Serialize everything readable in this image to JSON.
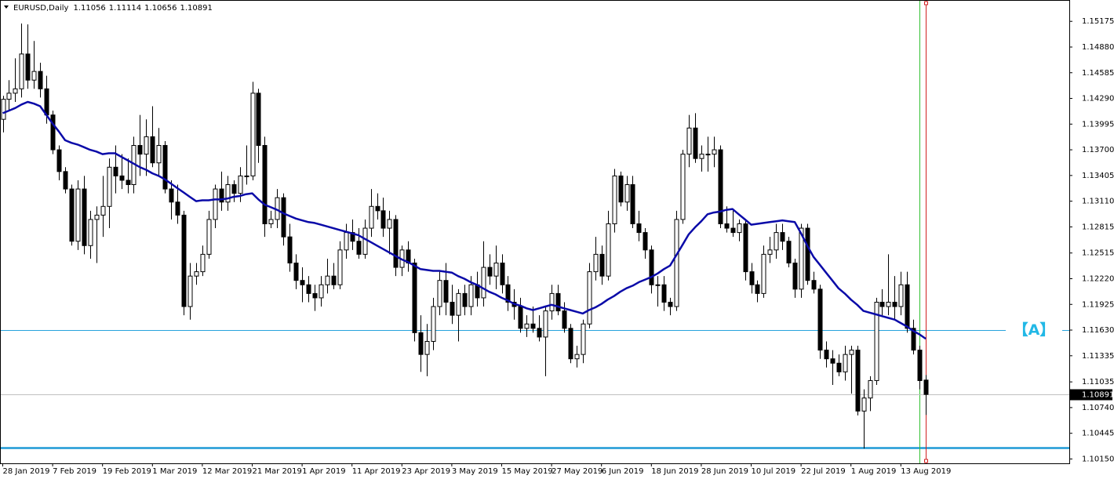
{
  "chart_data": {
    "type": "candlestick",
    "title": "EURUSD,Daily",
    "categories": [
      "28 Jan 2019",
      null,
      null,
      null,
      null,
      null,
      null,
      null,
      "7 Feb 2019",
      null,
      null,
      null,
      null,
      null,
      null,
      null,
      "19 Feb 2019",
      null,
      null,
      null,
      null,
      null,
      null,
      null,
      "1 Mar 2019",
      null,
      null,
      null,
      null,
      null,
      null,
      null,
      "12 Mar 2019",
      null,
      null,
      null,
      null,
      null,
      null,
      null,
      "21 Mar 2019",
      null,
      null,
      null,
      null,
      null,
      null,
      null,
      "1 Apr 2019",
      null,
      null,
      null,
      null,
      null,
      null,
      null,
      "11 Apr 2019",
      null,
      null,
      null,
      null,
      null,
      null,
      null,
      "23 Apr 2019",
      null,
      null,
      null,
      null,
      null,
      null,
      null,
      "3 May 2019",
      null,
      null,
      null,
      null,
      null,
      null,
      null,
      "15 May 2019",
      null,
      null,
      null,
      null,
      null,
      null,
      null,
      "27 May 2019",
      null,
      null,
      null,
      null,
      null,
      null,
      null,
      "6 Jun 2019",
      null,
      null,
      null,
      null,
      null,
      null,
      null,
      "18 Jun 2019",
      null,
      null,
      null,
      null,
      null,
      null,
      null,
      "28 Jun 2019",
      null,
      null,
      null,
      null,
      null,
      null,
      null,
      "10 Jul 2019",
      null,
      null,
      null,
      null,
      null,
      null,
      null,
      "22 Jul 2019",
      null,
      null,
      null,
      null,
      null,
      null,
      null,
      "1 Aug 2019",
      null,
      null,
      null,
      null,
      null,
      null,
      null,
      "13 Aug 2019",
      null,
      null,
      null,
      null
    ],
    "open": [
      1.1405,
      1.1428,
      1.1435,
      1.144,
      1.148,
      1.145,
      1.146,
      1.144,
      1.141,
      1.137,
      1.1345,
      1.1325,
      1.1265,
      1.1325,
      1.126,
      1.129,
      1.1295,
      1.1305,
      1.135,
      1.134,
      1.1335,
      1.133,
      1.1375,
      1.1365,
      1.1385,
      1.1355,
      1.1375,
      1.1325,
      1.131,
      1.1295,
      1.119,
      1.1225,
      1.123,
      1.125,
      1.129,
      1.1325,
      1.131,
      1.133,
      1.132,
      1.134,
      1.134,
      1.1435,
      1.1375,
      1.1285,
      1.129,
      1.1315,
      1.127,
      1.124,
      1.122,
      1.1215,
      1.1205,
      1.12,
      1.1215,
      1.1225,
      1.1215,
      1.1255,
      1.1275,
      1.1265,
      1.125,
      1.128,
      1.1305,
      1.13,
      1.128,
      1.129,
      1.1235,
      1.1255,
      1.124,
      1.116,
      1.1135,
      1.115,
      1.119,
      1.122,
      1.1195,
      1.118,
      1.1205,
      1.119,
      1.1215,
      1.12,
      1.1235,
      1.1225,
      1.124,
      1.1215,
      1.1195,
      1.119,
      1.1165,
      1.117,
      1.1165,
      1.1155,
      1.1185,
      1.1205,
      1.1185,
      1.1165,
      1.113,
      1.1135,
      1.117,
      1.123,
      1.125,
      1.1225,
      1.1285,
      1.134,
      1.131,
      1.133,
      1.1285,
      1.1275,
      1.1255,
      1.1215,
      1.1215,
      1.1195,
      1.119,
      1.129,
      1.1365,
      1.1395,
      1.136,
      1.1365,
      1.1365,
      1.137,
      1.1285,
      1.128,
      1.1275,
      1.1285,
      1.123,
      1.1215,
      1.1205,
      1.125,
      1.1255,
      1.1275,
      1.1265,
      1.124,
      1.121,
      1.128,
      1.122,
      1.121,
      1.114,
      1.113,
      1.1125,
      1.1115,
      1.1135,
      1.114,
      1.107,
      1.1085,
      1.1105,
      1.1195,
      1.119,
      1.1195,
      1.119,
      1.1215,
      1.1165,
      1.114,
      1.11056
    ],
    "high": [
      1.1432,
      1.145,
      1.1475,
      1.1515,
      1.1514,
      1.1495,
      1.147,
      1.1455,
      1.1415,
      1.1375,
      1.135,
      1.133,
      1.1335,
      1.134,
      1.13,
      1.1305,
      1.134,
      1.136,
      1.1375,
      1.1365,
      1.136,
      1.1385,
      1.141,
      1.1405,
      1.142,
      1.1395,
      1.138,
      1.1335,
      1.133,
      1.13,
      1.124,
      1.124,
      1.126,
      1.13,
      1.133,
      1.1345,
      1.134,
      1.1335,
      1.135,
      1.1375,
      1.1448,
      1.144,
      1.1385,
      1.13,
      1.1325,
      1.132,
      1.1285,
      1.125,
      1.1235,
      1.1225,
      1.1215,
      1.1225,
      1.1245,
      1.124,
      1.1265,
      1.1285,
      1.129,
      1.128,
      1.129,
      1.1325,
      1.132,
      1.1315,
      1.13,
      1.1295,
      1.126,
      1.1265,
      1.1245,
      1.118,
      1.117,
      1.12,
      1.123,
      1.124,
      1.1215,
      1.121,
      1.1215,
      1.1225,
      1.123,
      1.1265,
      1.125,
      1.126,
      1.125,
      1.1225,
      1.121,
      1.12,
      1.118,
      1.119,
      1.118,
      1.119,
      1.1215,
      1.1215,
      1.1195,
      1.117,
      1.1145,
      1.1175,
      1.124,
      1.127,
      1.126,
      1.13,
      1.1348,
      1.1345,
      1.134,
      1.134,
      1.13,
      1.128,
      1.126,
      1.1225,
      1.1225,
      1.12,
      1.13,
      1.137,
      1.141,
      1.1412,
      1.1375,
      1.1385,
      1.1385,
      1.1375,
      1.1305,
      1.13,
      1.129,
      1.129,
      1.124,
      1.122,
      1.126,
      1.127,
      1.1285,
      1.1285,
      1.127,
      1.1245,
      1.1285,
      1.1285,
      1.123,
      1.1215,
      1.115,
      1.114,
      1.1135,
      1.1145,
      1.1145,
      1.1145,
      1.1095,
      1.111,
      1.12,
      1.121,
      1.125,
      1.1225,
      1.123,
      1.123,
      1.1175,
      1.1145,
      1.11114
    ],
    "low": [
      1.139,
      1.1415,
      1.1425,
      1.143,
      1.144,
      1.144,
      1.143,
      1.14,
      1.1365,
      1.1335,
      1.132,
      1.126,
      1.1255,
      1.125,
      1.1245,
      1.124,
      1.127,
      1.128,
      1.132,
      1.1325,
      1.132,
      1.132,
      1.134,
      1.134,
      1.135,
      1.134,
      1.132,
      1.129,
      1.1285,
      1.118,
      1.1175,
      1.1215,
      1.1225,
      1.1245,
      1.128,
      1.13,
      1.13,
      1.131,
      1.131,
      1.133,
      1.1335,
      1.1355,
      1.127,
      1.128,
      1.128,
      1.126,
      1.123,
      1.121,
      1.1195,
      1.1195,
      1.1185,
      1.119,
      1.1205,
      1.121,
      1.121,
      1.1245,
      1.1255,
      1.1245,
      1.1245,
      1.127,
      1.129,
      1.127,
      1.125,
      1.1225,
      1.1225,
      1.123,
      1.115,
      1.1115,
      1.111,
      1.114,
      1.118,
      1.118,
      1.117,
      1.115,
      1.118,
      1.118,
      1.119,
      1.119,
      1.1215,
      1.121,
      1.1205,
      1.1185,
      1.1175,
      1.116,
      1.1155,
      1.116,
      1.115,
      1.111,
      1.1175,
      1.118,
      1.116,
      1.1125,
      1.112,
      1.1125,
      1.1165,
      1.122,
      1.1215,
      1.122,
      1.1275,
      1.1305,
      1.13,
      1.128,
      1.1265,
      1.1245,
      1.1205,
      1.119,
      1.1185,
      1.118,
      1.1185,
      1.1285,
      1.135,
      1.1355,
      1.1345,
      1.1345,
      1.135,
      1.128,
      1.1275,
      1.127,
      1.1265,
      1.122,
      1.1205,
      1.1195,
      1.12,
      1.124,
      1.1245,
      1.1255,
      1.1235,
      1.12,
      1.12,
      1.1215,
      1.1205,
      1.113,
      1.112,
      1.11,
      1.111,
      1.1105,
      1.109,
      1.1065,
      1.1027,
      1.107,
      1.11,
      1.118,
      1.118,
      1.1175,
      1.118,
      1.116,
      1.1135,
      1.1095,
      1.10656
    ],
    "close": [
      1.1428,
      1.1435,
      1.144,
      1.148,
      1.145,
      1.146,
      1.144,
      1.141,
      1.137,
      1.1345,
      1.1325,
      1.1265,
      1.1325,
      1.126,
      1.129,
      1.1295,
      1.1305,
      1.135,
      1.134,
      1.1335,
      1.133,
      1.1375,
      1.1365,
      1.1385,
      1.1355,
      1.1375,
      1.1325,
      1.131,
      1.1295,
      1.119,
      1.1225,
      1.123,
      1.125,
      1.129,
      1.1325,
      1.131,
      1.133,
      1.132,
      1.134,
      1.134,
      1.1435,
      1.1375,
      1.1285,
      1.129,
      1.1315,
      1.127,
      1.124,
      1.122,
      1.1215,
      1.1205,
      1.12,
      1.1215,
      1.1225,
      1.1215,
      1.1255,
      1.1275,
      1.1265,
      1.125,
      1.128,
      1.1305,
      1.13,
      1.128,
      1.129,
      1.1235,
      1.1255,
      1.124,
      1.116,
      1.1135,
      1.115,
      1.119,
      1.122,
      1.1195,
      1.118,
      1.1205,
      1.119,
      1.1215,
      1.12,
      1.1235,
      1.1225,
      1.124,
      1.1215,
      1.1195,
      1.119,
      1.1165,
      1.117,
      1.1165,
      1.1155,
      1.1185,
      1.1205,
      1.1185,
      1.1165,
      1.113,
      1.1135,
      1.117,
      1.123,
      1.125,
      1.1225,
      1.1285,
      1.134,
      1.131,
      1.133,
      1.1285,
      1.1275,
      1.1255,
      1.1215,
      1.1215,
      1.1195,
      1.119,
      1.129,
      1.1365,
      1.1395,
      1.136,
      1.1365,
      1.1365,
      1.137,
      1.1285,
      1.128,
      1.1275,
      1.1285,
      1.123,
      1.1215,
      1.1205,
      1.125,
      1.1255,
      1.1275,
      1.1265,
      1.124,
      1.121,
      1.128,
      1.122,
      1.121,
      1.114,
      1.113,
      1.1125,
      1.1115,
      1.1135,
      1.114,
      1.107,
      1.1085,
      1.1105,
      1.1195,
      1.119,
      1.1195,
      1.119,
      1.1215,
      1.1165,
      1.114,
      1.1105,
      1.10891
    ],
    "ma": {
      "color": "#0a0aa8",
      "values": [
        1.1412,
        1.1415,
        1.1418,
        1.1422,
        1.1425,
        1.1423,
        1.142,
        1.141,
        1.14,
        1.1391,
        1.1381,
        1.1378,
        1.1376,
        1.1373,
        1.137,
        1.1368,
        1.1365,
        1.1366,
        1.1366,
        1.1362,
        1.1358,
        1.1354,
        1.135,
        1.1347,
        1.1343,
        1.134,
        1.1336,
        1.1331,
        1.1326,
        1.1321,
        1.1316,
        1.1311,
        1.1312,
        1.1312,
        1.1313,
        1.1313,
        1.1314,
        1.1316,
        1.1317,
        1.1319,
        1.132,
        1.1313,
        1.1307,
        1.1304,
        1.1301,
        1.1297,
        1.1294,
        1.1291,
        1.1289,
        1.1287,
        1.1286,
        1.1284,
        1.1282,
        1.128,
        1.1278,
        1.1276,
        1.1274,
        1.1272,
        1.1268,
        1.1264,
        1.126,
        1.1256,
        1.1252,
        1.1248,
        1.1244,
        1.1241,
        1.1237,
        1.1233,
        1.1232,
        1.1231,
        1.1231,
        1.123,
        1.1229,
        1.1225,
        1.1222,
        1.1218,
        1.1215,
        1.1211,
        1.1207,
        1.1204,
        1.12,
        1.1197,
        1.1193,
        1.1191,
        1.1188,
        1.1186,
        1.1188,
        1.119,
        1.1192,
        1.119,
        1.1188,
        1.1186,
        1.1184,
        1.1182,
        1.1186,
        1.1189,
        1.1193,
        1.1198,
        1.1202,
        1.1207,
        1.1211,
        1.1214,
        1.1218,
        1.1221,
        1.1224,
        1.1228,
        1.1233,
        1.1237,
        1.1249,
        1.1261,
        1.1273,
        1.1281,
        1.1288,
        1.1296,
        1.1298,
        1.1299,
        1.1301,
        1.1302,
        1.1296,
        1.129,
        1.1284,
        1.1285,
        1.1286,
        1.1287,
        1.1288,
        1.1289,
        1.1288,
        1.1287,
        1.1274,
        1.126,
        1.1247,
        1.1238,
        1.1229,
        1.122,
        1.1211,
        1.1205,
        1.1198,
        1.1192,
        1.1185,
        1.1183,
        1.1181,
        1.1179,
        1.1177,
        1.1175,
        1.1171,
        1.1167,
        1.1162,
        1.1158,
        1.1153
      ]
    },
    "ylim": [
      1.101,
      1.1542
    ],
    "yticks": [
      1.15175,
      {
        "value": 1.1488,
        "label": "1.14880"
      },
      1.14585,
      {
        "value": 1.1429,
        "label": "1.14290"
      },
      1.13995,
      {
        "value": 1.137,
        "label": "1.13700"
      },
      1.13405,
      {
        "value": 1.1311,
        "label": "1.13110"
      },
      1.12815,
      1.12515,
      {
        "value": 1.1222,
        "label": "1.12220"
      },
      1.11925,
      {
        "value": 1.1163,
        "label": "1.11630"
      },
      1.11335,
      1.11035,
      {
        "value": 1.1074,
        "label": "1.10740"
      },
      1.10445,
      {
        "value": 1.1015,
        "label": "1.10150"
      }
    ],
    "hlines": [
      {
        "value": 1.1163,
        "color": "#27a3dc",
        "label": "【A】",
        "label_color": "#22b8e6",
        "thick": false
      },
      {
        "value": 1.1028,
        "color": "#1e9ad6",
        "thick": true
      }
    ],
    "vlines": [
      {
        "x": 147,
        "color": "#30c030"
      },
      {
        "x": 148,
        "color": "#d02020"
      }
    ],
    "up_color": "#ffffff",
    "down_color": "#000000"
  }
}
